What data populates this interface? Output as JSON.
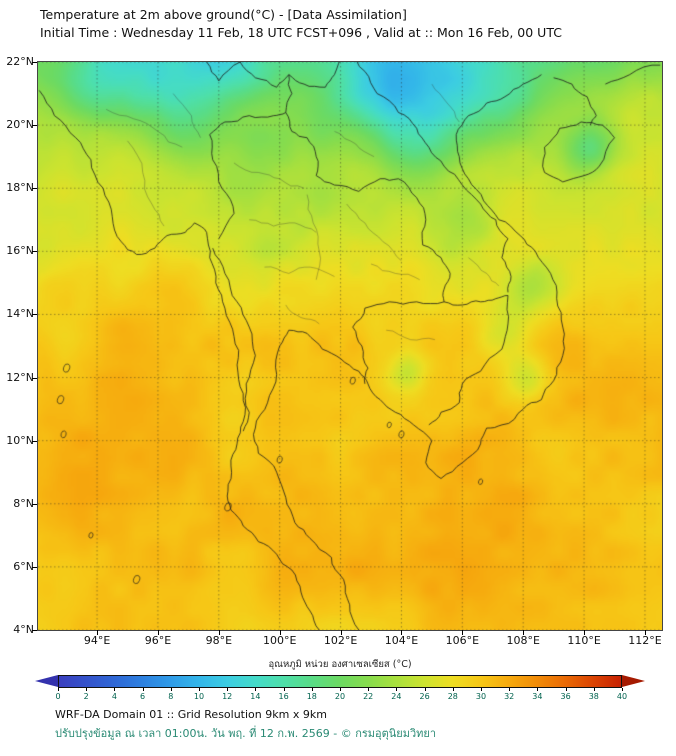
{
  "header": {
    "title": "Temperature at 2m above ground(°C) - [Data Assimilation]",
    "subtitle": "Initial Time : Wednesday 11 Feb, 18 UTC FCST+096 , Valid at :: Mon 16 Feb, 00 UTC"
  },
  "footer": {
    "line1": "WRF-DA Domain 01 :: Grid Resolution 9km x 9km",
    "line2": "ปรับปรุงข้อมูล ณ เวลา 01:00น. วัน พฤ. ที่ 12 ก.พ. 2569 - © กรมอุตุนิยมวิทยา"
  },
  "chart_data": {
    "type": "heatmap",
    "variable": "Temperature at 2m above ground (°C)",
    "model": "WRF-DA Domain 01",
    "grid_resolution": "9km x 9km",
    "initial_time": "Wednesday 11 Feb, 18 UTC",
    "forecast": "FCST+096",
    "valid_time": "Mon 16 Feb, 00 UTC",
    "lon_range": [
      92.06,
      112.56
    ],
    "lat_range": [
      4,
      22
    ],
    "lat_ticks": [
      22,
      20,
      18,
      16,
      14,
      12,
      10,
      8,
      6,
      4
    ],
    "lat_tick_labels": [
      "22°N",
      "20°N",
      "18°N",
      "16°N",
      "14°N",
      "12°N",
      "10°N",
      "8°N",
      "6°N",
      "4°N"
    ],
    "lon_ticks": [
      94,
      96,
      98,
      100,
      102,
      104,
      106,
      108,
      110,
      112
    ],
    "lon_tick_labels": [
      "94°E",
      "96°E",
      "98°E",
      "100°E",
      "102°E",
      "104°E",
      "106°E",
      "108°E",
      "110°E",
      "112°E"
    ],
    "colorbar": {
      "label": "อุณหภูมิ หน่วย องศาเซลเซียส (°C)",
      "min": 0,
      "max": 40,
      "ticks": [
        0,
        2,
        4,
        6,
        8,
        10,
        12,
        14,
        16,
        18,
        20,
        22,
        24,
        26,
        28,
        30,
        32,
        34,
        36,
        38,
        40
      ],
      "left_arrow_color": "#3432ad",
      "right_arrow_color": "#a51a01",
      "stops": [
        [
          0,
          "#3a3fbf"
        ],
        [
          2,
          "#3453cb"
        ],
        [
          4,
          "#2f68d6"
        ],
        [
          6,
          "#2d81e0"
        ],
        [
          8,
          "#2f9ce8"
        ],
        [
          10,
          "#33b6e9"
        ],
        [
          12,
          "#3ccde2"
        ],
        [
          14,
          "#44dbc9"
        ],
        [
          16,
          "#4edfa9"
        ],
        [
          18,
          "#59dc86"
        ],
        [
          20,
          "#6cda62"
        ],
        [
          22,
          "#87dc4d"
        ],
        [
          24,
          "#a9e03d"
        ],
        [
          26,
          "#cde32f"
        ],
        [
          28,
          "#eedd22"
        ],
        [
          30,
          "#f6c716"
        ],
        [
          32,
          "#f6aa0e"
        ],
        [
          34,
          "#f18c08"
        ],
        [
          36,
          "#e96a05"
        ],
        [
          38,
          "#db4403"
        ],
        [
          40,
          "#c72102"
        ]
      ]
    },
    "field": {
      "base_south_temp": 29.6,
      "cooling_start_lat": 13,
      "cooling_per_deg": 0.8,
      "extra_north_start_lat": 20,
      "extra_north_per_deg": 1.2,
      "blobs": [
        [
          94.6,
          9.0,
          4.0,
          1.9
        ],
        [
          92.6,
          18.0,
          1.3,
          1.5
        ],
        [
          96.0,
          13.8,
          1.8,
          1.4
        ],
        [
          101.6,
          8.0,
          2.6,
          1.2
        ],
        [
          104.8,
          6.5,
          3.2,
          1.6
        ],
        [
          109.5,
          7.5,
          3.0,
          1.6
        ],
        [
          106.3,
          9.6,
          1.2,
          1.0
        ],
        [
          111.5,
          13.0,
          2.5,
          0.9
        ],
        [
          112.2,
          21.0,
          1.8,
          2.5
        ],
        [
          96.3,
          21.4,
          1.7,
          -5.5
        ],
        [
          94.6,
          21.9,
          1.4,
          -4.5
        ],
        [
          93.6,
          21.0,
          1.0,
          -3.5
        ],
        [
          98.3,
          21.9,
          1.4,
          -5.0
        ],
        [
          97.3,
          19.6,
          1.1,
          -2.6
        ],
        [
          98.8,
          18.1,
          0.9,
          -2.4
        ],
        [
          99.3,
          19.4,
          0.9,
          -2.8
        ],
        [
          101.4,
          19.9,
          1.0,
          -2.8
        ],
        [
          103.3,
          22.1,
          2.0,
          -6.0
        ],
        [
          104.9,
          21.6,
          1.8,
          -5.0
        ],
        [
          104.1,
          19.9,
          1.2,
          -3.6
        ],
        [
          105.6,
          20.4,
          1.5,
          -3.2
        ],
        [
          103.0,
          20.9,
          1.2,
          -4.0
        ],
        [
          106.9,
          21.9,
          1.6,
          -3.0
        ],
        [
          107.6,
          20.6,
          1.3,
          -2.6
        ],
        [
          110.2,
          19.3,
          0.85,
          -6.5
        ],
        [
          108.2,
          14.8,
          0.9,
          -4.0
        ],
        [
          108.1,
          11.9,
          0.7,
          -4.5
        ],
        [
          107.4,
          13.4,
          0.8,
          -3.0
        ],
        [
          104.2,
          12.2,
          0.6,
          -3.4
        ],
        [
          101.6,
          17.6,
          1.0,
          -1.8
        ],
        [
          102.6,
          16.9,
          1.4,
          -1.2
        ],
        [
          99.6,
          15.9,
          0.8,
          -1.3
        ],
        [
          106.3,
          16.8,
          1.0,
          -2.2
        ],
        [
          105.0,
          19.0,
          1.0,
          -2.5
        ]
      ]
    },
    "borders": [
      [
        [
          92.1,
          21.1
        ],
        [
          92.6,
          20.3
        ],
        [
          93.3,
          19.6
        ],
        [
          93.8,
          18.9
        ],
        [
          94.2,
          18.0
        ],
        [
          94.5,
          17.1
        ],
        [
          94.8,
          16.3
        ],
        [
          95.3,
          15.9
        ],
        [
          95.9,
          16.1
        ],
        [
          96.3,
          16.5
        ],
        [
          96.9,
          16.6
        ],
        [
          97.2,
          16.9
        ],
        [
          97.6,
          16.6
        ],
        [
          97.7,
          15.8
        ],
        [
          97.9,
          15.0
        ],
        [
          98.2,
          14.2
        ],
        [
          98.5,
          13.3
        ],
        [
          98.6,
          12.4
        ],
        [
          98.8,
          11.5
        ],
        [
          98.8,
          10.6
        ],
        [
          98.6,
          9.9
        ],
        [
          98.4,
          9.2
        ],
        [
          98.3,
          8.4
        ],
        [
          98.4,
          7.8
        ],
        [
          98.8,
          7.3
        ],
        [
          99.3,
          6.8
        ],
        [
          99.9,
          6.4
        ],
        [
          100.4,
          5.9
        ],
        [
          100.7,
          5.2
        ],
        [
          101.0,
          4.6
        ],
        [
          101.3,
          4.0
        ]
      ],
      [
        [
          102.6,
          4.0
        ],
        [
          102.3,
          4.8
        ],
        [
          102.1,
          5.6
        ],
        [
          101.7,
          6.3
        ],
        [
          101.0,
          6.9
        ],
        [
          100.5,
          7.4
        ],
        [
          100.2,
          8.2
        ],
        [
          99.9,
          9.0
        ],
        [
          99.3,
          9.6
        ],
        [
          99.2,
          10.4
        ],
        [
          99.6,
          11.2
        ],
        [
          99.9,
          12.1
        ],
        [
          100.0,
          13.0
        ],
        [
          100.3,
          13.5
        ],
        [
          100.9,
          13.4
        ],
        [
          101.4,
          12.9
        ],
        [
          102.0,
          12.6
        ],
        [
          102.6,
          12.2
        ],
        [
          102.9,
          11.8
        ],
        [
          103.3,
          11.3
        ],
        [
          103.8,
          10.9
        ],
        [
          104.4,
          10.5
        ],
        [
          105.0,
          10.0
        ],
        [
          104.8,
          9.3
        ],
        [
          105.3,
          8.8
        ],
        [
          106.0,
          9.3
        ],
        [
          106.6,
          9.9
        ],
        [
          106.8,
          10.4
        ],
        [
          107.3,
          10.5
        ],
        [
          108.0,
          11.0
        ],
        [
          108.6,
          11.3
        ],
        [
          109.0,
          11.9
        ],
        [
          109.3,
          12.7
        ],
        [
          109.3,
          13.6
        ],
        [
          109.1,
          14.5
        ],
        [
          108.9,
          15.3
        ],
        [
          108.4,
          16.0
        ],
        [
          107.9,
          16.5
        ],
        [
          107.2,
          17.0
        ],
        [
          106.7,
          17.6
        ],
        [
          106.2,
          18.3
        ],
        [
          105.9,
          19.0
        ],
        [
          105.8,
          19.7
        ],
        [
          106.2,
          20.3
        ],
        [
          106.8,
          20.7
        ],
        [
          107.4,
          20.9
        ],
        [
          108.0,
          21.3
        ],
        [
          108.6,
          21.6
        ]
      ],
      [
        [
          109.0,
          21.5
        ],
        [
          109.6,
          21.3
        ],
        [
          110.1,
          20.9
        ],
        [
          110.4,
          20.3
        ],
        [
          110.2,
          20.0
        ]
      ],
      [
        [
          110.7,
          21.3
        ],
        [
          111.5,
          21.6
        ],
        [
          112.5,
          21.9
        ]
      ],
      [
        [
          108.7,
          18.5
        ],
        [
          108.7,
          19.3
        ],
        [
          109.2,
          19.9
        ],
        [
          109.9,
          20.1
        ],
        [
          110.6,
          20.0
        ],
        [
          111.0,
          19.6
        ],
        [
          110.5,
          18.7
        ],
        [
          110.0,
          18.4
        ],
        [
          109.3,
          18.2
        ],
        [
          108.7,
          18.5
        ]
      ],
      [
        [
          97.8,
          16.1
        ],
        [
          98.2,
          15.3
        ],
        [
          98.6,
          14.4
        ],
        [
          99.0,
          13.6
        ],
        [
          99.2,
          12.7
        ],
        [
          98.9,
          11.8
        ],
        [
          99.0,
          10.9
        ],
        [
          98.8,
          10.3
        ]
      ],
      [
        [
          98.0,
          16.4
        ],
        [
          98.5,
          17.2
        ],
        [
          98.1,
          18.0
        ],
        [
          97.8,
          18.9
        ],
        [
          97.7,
          19.7
        ],
        [
          98.2,
          20.1
        ],
        [
          99.0,
          20.3
        ],
        [
          99.8,
          20.3
        ],
        [
          100.2,
          20.4
        ]
      ],
      [
        [
          100.2,
          20.4
        ],
        [
          100.4,
          19.8
        ],
        [
          100.9,
          19.6
        ],
        [
          101.2,
          19.0
        ],
        [
          101.2,
          18.4
        ],
        [
          101.8,
          18.1
        ],
        [
          102.6,
          17.9
        ],
        [
          103.3,
          18.3
        ],
        [
          103.9,
          18.3
        ],
        [
          104.5,
          17.7
        ],
        [
          104.8,
          17.0
        ],
        [
          104.7,
          16.2
        ],
        [
          105.3,
          15.8
        ],
        [
          105.6,
          15.3
        ],
        [
          105.4,
          14.8
        ],
        [
          105.4,
          14.4
        ]
      ],
      [
        [
          105.4,
          14.4
        ],
        [
          104.5,
          14.4
        ],
        [
          103.6,
          14.4
        ],
        [
          102.8,
          14.2
        ],
        [
          102.4,
          13.6
        ],
        [
          102.7,
          13.0
        ],
        [
          102.9,
          12.3
        ],
        [
          102.8,
          11.8
        ]
      ],
      [
        [
          102.1,
          22.3
        ],
        [
          102.8,
          21.7
        ],
        [
          103.2,
          21.0
        ],
        [
          103.9,
          20.4
        ],
        [
          104.5,
          19.9
        ],
        [
          104.9,
          19.3
        ],
        [
          105.4,
          18.7
        ],
        [
          106.0,
          18.1
        ],
        [
          106.6,
          17.5
        ],
        [
          107.1,
          17.0
        ],
        [
          107.5,
          16.4
        ],
        [
          107.3,
          15.8
        ],
        [
          107.6,
          15.2
        ],
        [
          107.5,
          14.7
        ]
      ],
      [
        [
          107.5,
          14.6
        ],
        [
          107.5,
          13.7
        ],
        [
          107.3,
          12.9
        ],
        [
          106.6,
          12.2
        ],
        [
          106.0,
          11.8
        ],
        [
          105.9,
          11.2
        ],
        [
          105.3,
          10.9
        ],
        [
          104.9,
          10.5
        ]
      ],
      [
        [
          105.4,
          14.4
        ],
        [
          106.0,
          14.3
        ],
        [
          106.6,
          14.4
        ],
        [
          107.1,
          14.5
        ],
        [
          107.5,
          14.6
        ]
      ],
      [
        [
          98.7,
          22.0
        ],
        [
          99.2,
          21.5
        ],
        [
          99.9,
          21.2
        ],
        [
          100.3,
          21.6
        ],
        [
          100.8,
          21.3
        ],
        [
          101.5,
          21.2
        ],
        [
          101.8,
          21.6
        ],
        [
          102.1,
          22.3
        ]
      ],
      [
        [
          100.2,
          20.4
        ],
        [
          100.4,
          21.0
        ],
        [
          100.3,
          21.6
        ]
      ],
      [
        [
          97.6,
          22.0
        ],
        [
          98.0,
          21.4
        ],
        [
          98.7,
          22.0
        ]
      ]
    ],
    "internal_borders": [
      [
        [
          95.0,
          19.5
        ],
        [
          95.5,
          18.5
        ],
        [
          95.8,
          17.5
        ],
        [
          96.2,
          16.8
        ]
      ],
      [
        [
          94.3,
          20.5
        ],
        [
          95.2,
          20.2
        ],
        [
          96.0,
          19.8
        ],
        [
          96.8,
          19.3
        ]
      ],
      [
        [
          96.5,
          21.0
        ],
        [
          97.1,
          20.3
        ],
        [
          97.4,
          19.6
        ]
      ],
      [
        [
          98.5,
          18.8
        ],
        [
          99.3,
          18.5
        ],
        [
          100.0,
          18.3
        ],
        [
          100.8,
          18.0
        ]
      ],
      [
        [
          99.0,
          17.0
        ],
        [
          99.8,
          16.8
        ],
        [
          100.5,
          16.9
        ],
        [
          101.2,
          16.6
        ]
      ],
      [
        [
          99.5,
          15.5
        ],
        [
          100.3,
          15.3
        ],
        [
          101.0,
          15.5
        ],
        [
          101.8,
          15.2
        ]
      ],
      [
        [
          100.9,
          17.8
        ],
        [
          101.1,
          16.9
        ],
        [
          101.3,
          16.0
        ],
        [
          101.2,
          15.1
        ]
      ],
      [
        [
          102.2,
          17.5
        ],
        [
          102.8,
          16.9
        ],
        [
          103.4,
          16.3
        ],
        [
          104.0,
          15.7
        ]
      ],
      [
        [
          103.0,
          15.6
        ],
        [
          103.8,
          15.3
        ],
        [
          104.6,
          15.1
        ]
      ],
      [
        [
          101.8,
          19.8
        ],
        [
          102.5,
          19.4
        ],
        [
          103.1,
          19.0
        ]
      ],
      [
        [
          105.0,
          21.3
        ],
        [
          105.5,
          20.7
        ],
        [
          105.9,
          20.1
        ]
      ],
      [
        [
          100.2,
          14.3
        ],
        [
          100.7,
          13.9
        ],
        [
          101.3,
          13.7
        ]
      ],
      [
        [
          103.5,
          13.5
        ],
        [
          104.3,
          13.2
        ],
        [
          105.1,
          13.2
        ]
      ],
      [
        [
          106.2,
          15.8
        ],
        [
          106.8,
          15.3
        ],
        [
          107.2,
          14.9
        ]
      ]
    ],
    "islands": [
      [
        93.0,
        12.3,
        3
      ],
      [
        92.8,
        11.3,
        3
      ],
      [
        92.9,
        10.2,
        2.5
      ],
      [
        93.8,
        7.0,
        2
      ],
      [
        95.3,
        5.6,
        3
      ],
      [
        98.3,
        7.9,
        3
      ],
      [
        100.0,
        9.4,
        2.5
      ],
      [
        102.4,
        11.9,
        2.5
      ],
      [
        103.6,
        10.5,
        2
      ],
      [
        104.0,
        10.2,
        2.5
      ],
      [
        106.6,
        8.7,
        2
      ]
    ]
  }
}
